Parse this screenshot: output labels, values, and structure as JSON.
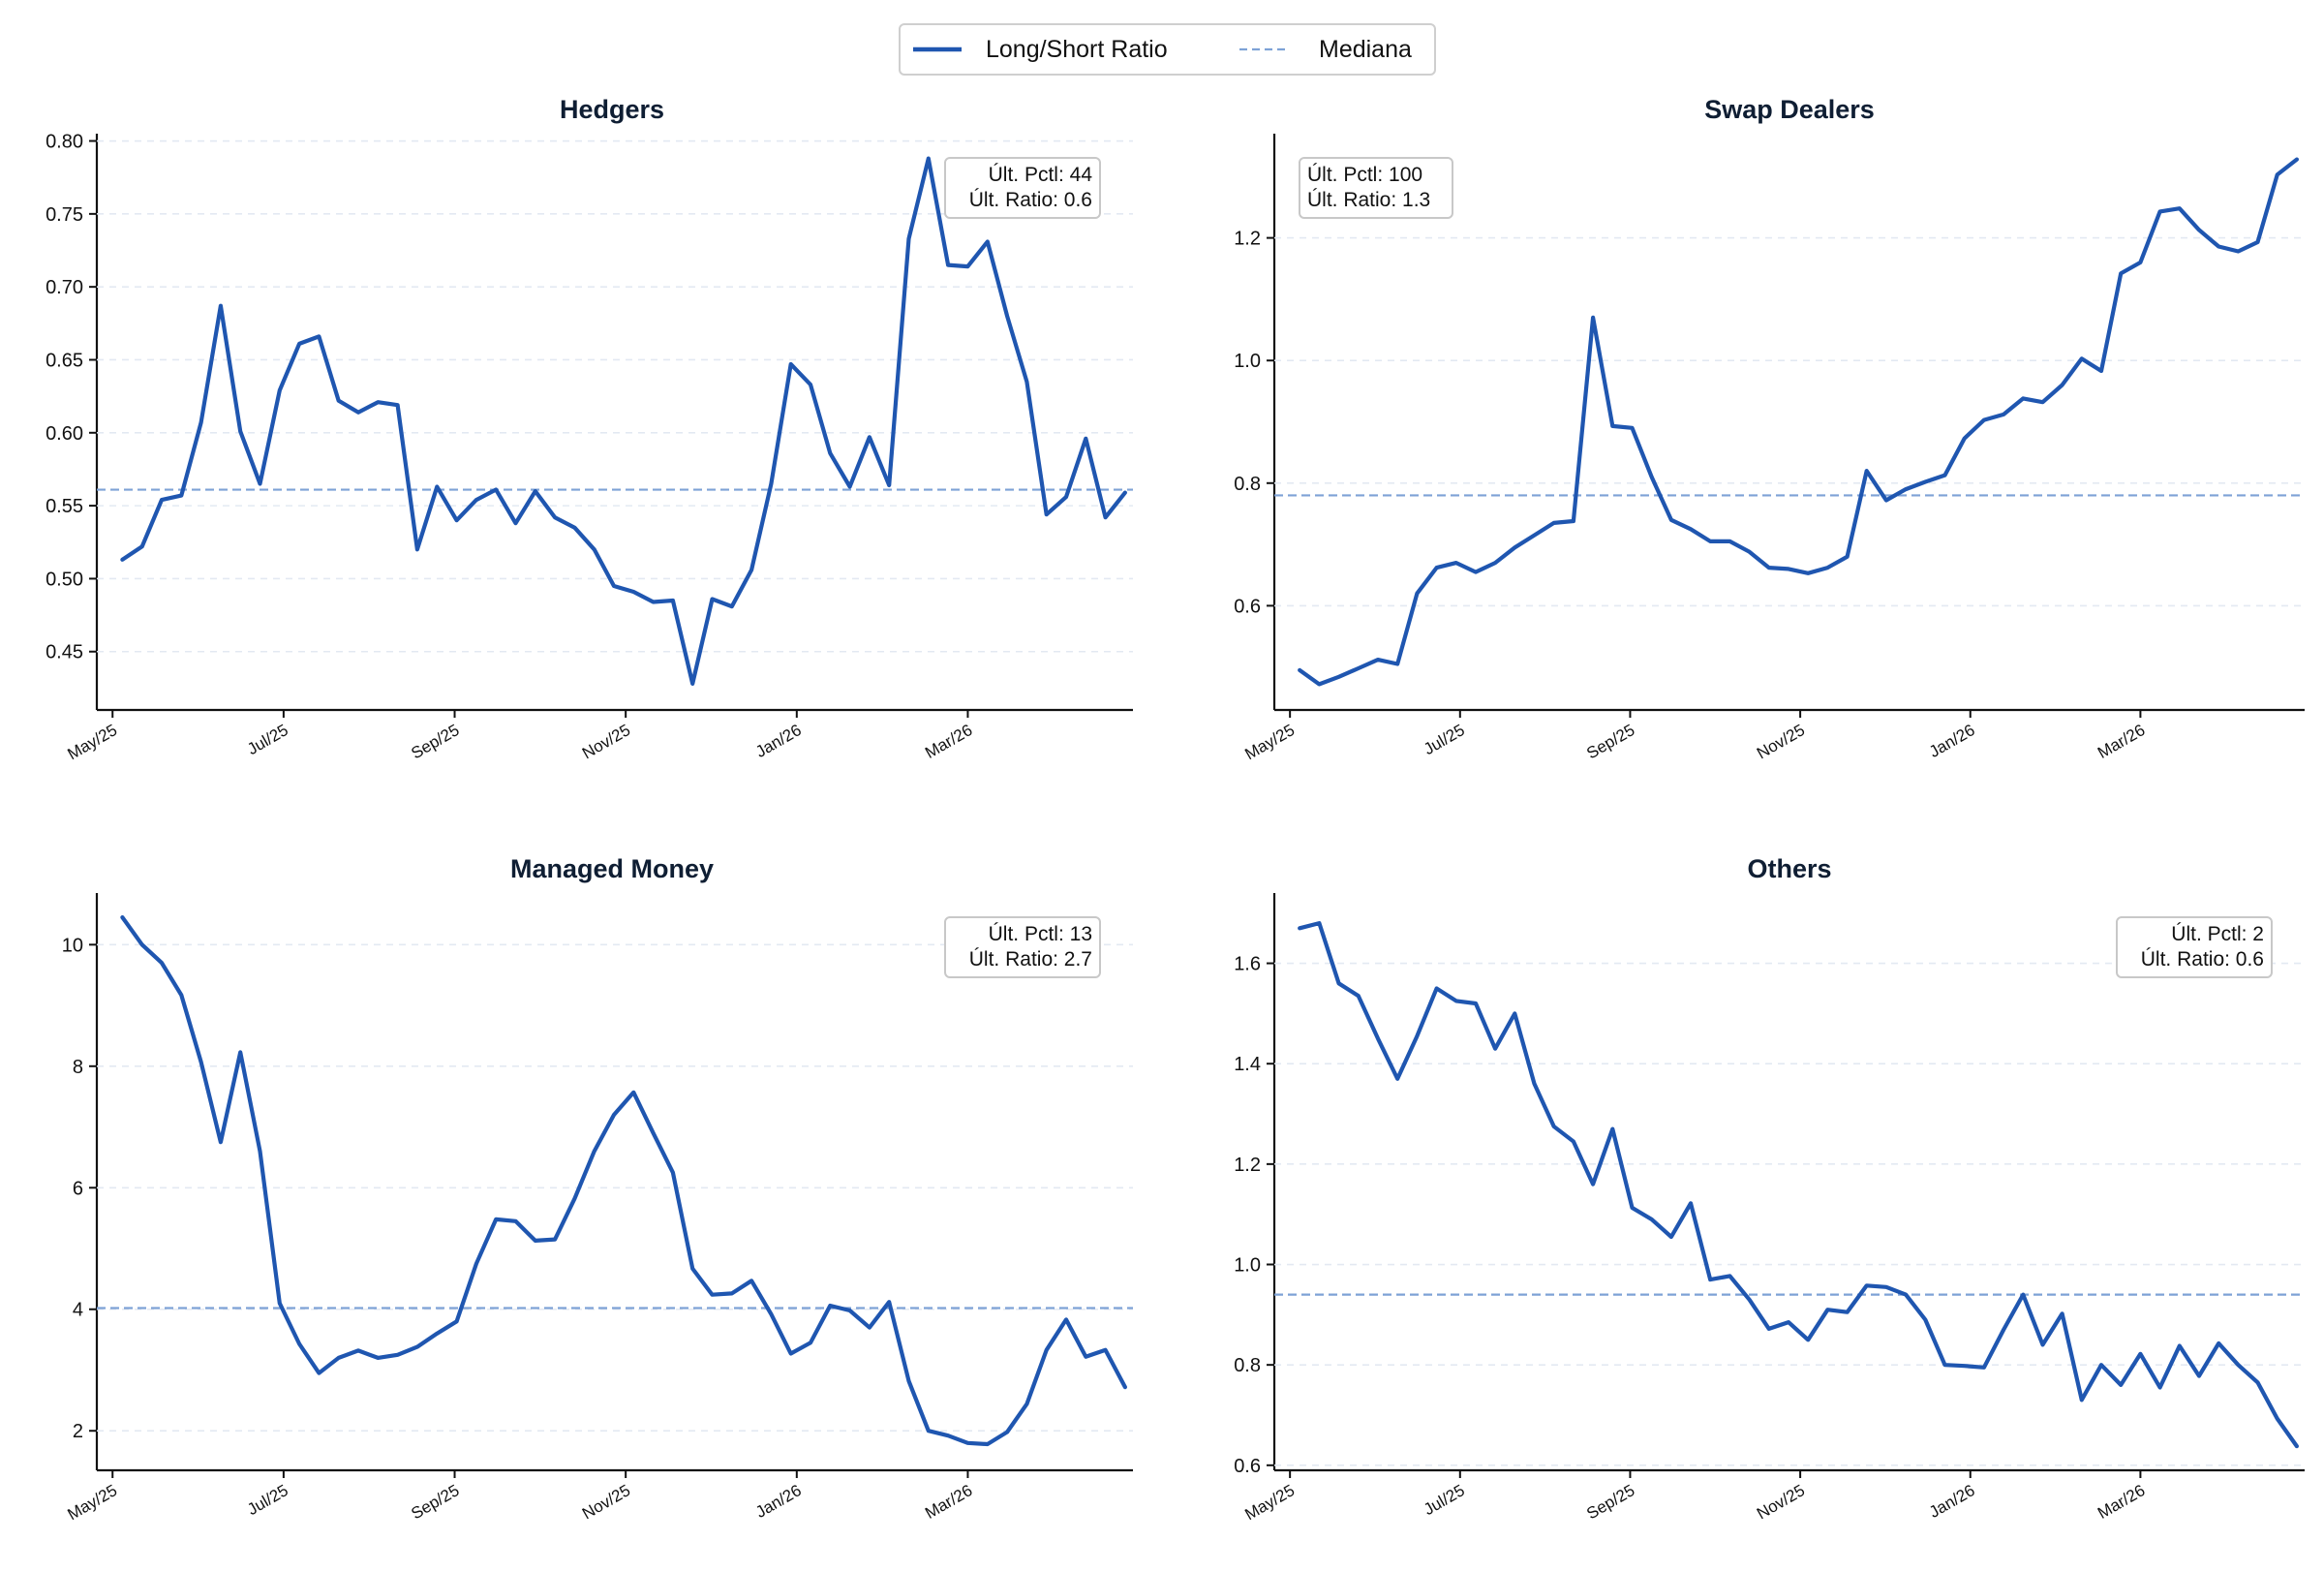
{
  "legend": {
    "series_label": "Long/Short Ratio",
    "median_label": "Mediana",
    "placement": "top-center"
  },
  "colors": {
    "series": "#1f56b0",
    "median": "#7ea2d6",
    "grid": "#e3e9f2",
    "axis": "#111111"
  },
  "chart_data": [
    {
      "type": "line",
      "title": "Hedgers",
      "annotation": [
        "Últ. Pctl: 44",
        "Últ. Ratio: 0.6"
      ],
      "annotation_placement": "top-right",
      "median": 0.561,
      "ylim": [
        0.41,
        0.805
      ],
      "yticks": [
        0.45,
        0.5,
        0.55,
        0.6,
        0.65,
        0.7,
        0.75,
        0.8
      ],
      "ytick_labels": [
        "0.45",
        "0.50",
        "0.55",
        "0.60",
        "0.65",
        "0.70",
        "0.75",
        "0.80"
      ],
      "xlim": [
        -0.3,
        52.4
      ],
      "xticks": [
        0.5,
        9.2,
        17.9,
        26.6,
        35.3,
        44.0
      ],
      "xtick_labels": [
        "May/25",
        "Jul/25",
        "Sep/25",
        "Nov/25",
        "Jan/26",
        "Mar/26"
      ],
      "grid": true,
      "values": [
        0.513,
        0.522,
        0.554,
        0.557,
        0.607,
        0.687,
        0.601,
        0.565,
        0.629,
        0.661,
        0.666,
        0.622,
        0.614,
        0.621,
        0.619,
        0.52,
        0.563,
        0.54,
        0.554,
        0.561,
        0.538,
        0.56,
        0.542,
        0.535,
        0.52,
        0.495,
        0.491,
        0.484,
        0.485,
        0.428,
        0.486,
        0.481,
        0.506,
        0.565,
        0.647,
        0.633,
        0.586,
        0.563,
        0.597,
        0.564,
        0.733,
        0.788,
        0.715,
        0.714,
        0.731,
        0.68,
        0.635,
        0.544,
        0.556,
        0.596,
        0.542,
        0.559
      ]
    },
    {
      "type": "line",
      "title": "Swap Dealers",
      "annotation": [
        "Últ. Pctl: 100",
        "Últ. Ratio: 1.3"
      ],
      "annotation_placement": "top-left",
      "median": 0.78,
      "ylim": [
        0.43,
        1.37
      ],
      "yticks": [
        0.6,
        0.8,
        1.0,
        1.2
      ],
      "ytick_labels": [
        "0.6",
        "0.8",
        "1.0",
        "1.2"
      ],
      "xlim": [
        -0.3,
        52.4
      ],
      "xticks": [
        0.5,
        9.2,
        17.9,
        26.6,
        35.3,
        44.0
      ],
      "xtick_labels": [
        "May/25",
        "Jul/25",
        "Sep/25",
        "Nov/25",
        "Jan/26",
        "Mar/26"
      ],
      "grid": true,
      "values": [
        0.495,
        0.472,
        0.484,
        0.498,
        0.512,
        0.505,
        0.62,
        0.662,
        0.67,
        0.655,
        0.67,
        0.695,
        0.715,
        0.735,
        0.738,
        1.07,
        0.893,
        0.89,
        0.81,
        0.74,
        0.725,
        0.705,
        0.705,
        0.688,
        0.662,
        0.66,
        0.653,
        0.662,
        0.68,
        0.82,
        0.772,
        0.79,
        0.802,
        0.813,
        0.873,
        0.903,
        0.912,
        0.938,
        0.932,
        0.96,
        1.003,
        0.983,
        1.142,
        1.16,
        1.243,
        1.248,
        1.213,
        1.186,
        1.178,
        1.193,
        1.303,
        1.328
      ]
    },
    {
      "type": "line",
      "title": "Managed Money",
      "annotation": [
        "Últ. Pctl: 13",
        "Últ. Ratio: 2.7"
      ],
      "annotation_placement": "top-right",
      "median": 4.02,
      "ylim": [
        1.35,
        10.85
      ],
      "yticks": [
        2,
        4,
        6,
        8,
        10
      ],
      "ytick_labels": [
        "2",
        "4",
        "6",
        "8",
        "10"
      ],
      "xlim": [
        -0.3,
        52.4
      ],
      "xticks": [
        0.5,
        9.2,
        17.9,
        26.6,
        35.3,
        44.0
      ],
      "xtick_labels": [
        "May/25",
        "Jul/25",
        "Sep/25",
        "Nov/25",
        "Jan/26",
        "Mar/26"
      ],
      "grid": true,
      "values": [
        10.45,
        10.0,
        9.7,
        9.17,
        8.07,
        6.75,
        8.23,
        6.6,
        4.1,
        3.43,
        2.95,
        3.2,
        3.32,
        3.2,
        3.25,
        3.38,
        3.6,
        3.8,
        4.75,
        5.48,
        5.45,
        5.13,
        5.15,
        5.82,
        6.6,
        7.2,
        7.57,
        6.9,
        6.25,
        4.67,
        4.24,
        4.26,
        4.47,
        3.92,
        3.27,
        3.45,
        4.06,
        3.98,
        3.7,
        4.12,
        2.82,
        2.0,
        1.92,
        1.8,
        1.78,
        1.98,
        2.44,
        3.33,
        3.83,
        3.22,
        3.33,
        2.72
      ]
    },
    {
      "type": "line",
      "title": "Others",
      "annotation": [
        "Últ. Pctl: 2",
        "Últ. Ratio: 0.6"
      ],
      "annotation_placement": "top-right",
      "median": 0.94,
      "ylim": [
        0.59,
        1.74
      ],
      "yticks": [
        0.6,
        0.8,
        1.0,
        1.2,
        1.4,
        1.6
      ],
      "ytick_labels": [
        "0.6",
        "0.8",
        "1.0",
        "1.2",
        "1.4",
        "1.6"
      ],
      "xlim": [
        -0.3,
        52.4
      ],
      "xticks": [
        0.5,
        9.2,
        17.9,
        26.6,
        35.3,
        44.0
      ],
      "xtick_labels": [
        "May/25",
        "Jul/25",
        "Sep/25",
        "Nov/25",
        "Jan/26",
        "Mar/26"
      ],
      "grid": true,
      "values": [
        1.67,
        1.68,
        1.56,
        1.535,
        1.45,
        1.37,
        1.455,
        1.55,
        1.525,
        1.52,
        1.43,
        1.5,
        1.36,
        1.275,
        1.245,
        1.16,
        1.27,
        1.113,
        1.09,
        1.055,
        1.122,
        0.97,
        0.977,
        0.93,
        0.872,
        0.885,
        0.85,
        0.91,
        0.905,
        0.958,
        0.955,
        0.94,
        0.89,
        0.8,
        0.798,
        0.795,
        0.87,
        0.94,
        0.84,
        0.902,
        0.73,
        0.8,
        0.76,
        0.822,
        0.755,
        0.838,
        0.778,
        0.843,
        0.8,
        0.765,
        0.693,
        0.638
      ]
    }
  ]
}
